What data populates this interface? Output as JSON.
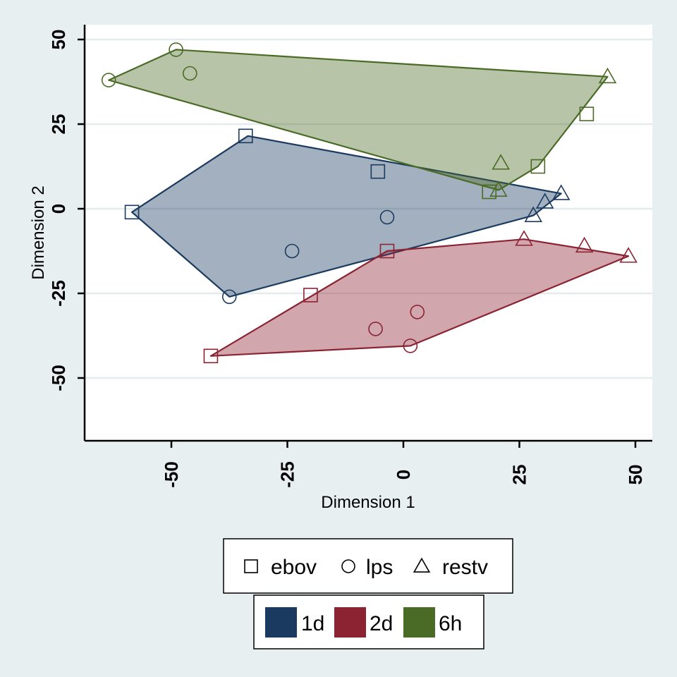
{
  "chart_data": {
    "type": "scatter",
    "title": "",
    "xlabel": "Dimension 1",
    "ylabel": "Dimension 2",
    "xlim": [
      -70,
      54
    ],
    "ylim": [
      -68,
      55
    ],
    "xticks": [
      -50,
      -25,
      0,
      25,
      50
    ],
    "yticks": [
      -50,
      -25,
      0,
      25,
      50
    ],
    "grid": true,
    "legend_placement": "bottom",
    "marker_legend": [
      {
        "name": "ebov",
        "marker": "square"
      },
      {
        "name": "lps",
        "marker": "circle"
      },
      {
        "name": "restv",
        "marker": "triangle"
      }
    ],
    "series": [
      {
        "name": "1d",
        "color": "#1a3a5f",
        "hull": [
          [
            -58.5,
            -1
          ],
          [
            -33.5,
            21.5
          ],
          [
            34,
            4.5
          ],
          [
            28,
            -2
          ],
          [
            -37.5,
            -26
          ]
        ],
        "points": [
          {
            "marker": "square",
            "x": -58.5,
            "y": -1
          },
          {
            "marker": "square",
            "x": -34,
            "y": 21.5
          },
          {
            "marker": "square",
            "x": -5.5,
            "y": 11
          },
          {
            "marker": "circle",
            "x": -3.5,
            "y": -2.5
          },
          {
            "marker": "circle",
            "x": -24,
            "y": -12.5
          },
          {
            "marker": "circle",
            "x": -37.5,
            "y": -26
          },
          {
            "marker": "triangle",
            "x": 34,
            "y": 4.5
          },
          {
            "marker": "triangle",
            "x": 30.5,
            "y": 2
          },
          {
            "marker": "triangle",
            "x": 28,
            "y": -2
          }
        ]
      },
      {
        "name": "2d",
        "color": "#8b2332",
        "hull": [
          [
            -41.5,
            -43.5
          ],
          [
            -3.5,
            -12.5
          ],
          [
            26,
            -9
          ],
          [
            48.5,
            -14
          ],
          [
            1.5,
            -40.5
          ]
        ],
        "points": [
          {
            "marker": "square",
            "x": -41.5,
            "y": -43.5
          },
          {
            "marker": "square",
            "x": -20,
            "y": -25.5
          },
          {
            "marker": "square",
            "x": -3.5,
            "y": -12.5
          },
          {
            "marker": "circle",
            "x": 1.5,
            "y": -40.5
          },
          {
            "marker": "circle",
            "x": -6,
            "y": -35.5
          },
          {
            "marker": "circle",
            "x": 3,
            "y": -30.5
          },
          {
            "marker": "triangle",
            "x": 26,
            "y": -9
          },
          {
            "marker": "triangle",
            "x": 39,
            "y": -11
          },
          {
            "marker": "triangle",
            "x": 48.5,
            "y": -14
          }
        ]
      },
      {
        "name": "6h",
        "color": "#4a6b25",
        "hull": [
          [
            -63.5,
            38
          ],
          [
            -49,
            47
          ],
          [
            44,
            39
          ],
          [
            29,
            12.5
          ],
          [
            20.5,
            5.5
          ]
        ],
        "points": [
          {
            "marker": "square",
            "x": 39.5,
            "y": 28
          },
          {
            "marker": "square",
            "x": 29,
            "y": 12.5
          },
          {
            "marker": "square",
            "x": 18.5,
            "y": 5
          },
          {
            "marker": "circle",
            "x": -63.5,
            "y": 38
          },
          {
            "marker": "circle",
            "x": -49,
            "y": 47
          },
          {
            "marker": "circle",
            "x": -46,
            "y": 40
          },
          {
            "marker": "triangle",
            "x": 44,
            "y": 39
          },
          {
            "marker": "triangle",
            "x": 21,
            "y": 13.5
          },
          {
            "marker": "triangle",
            "x": 20.5,
            "y": 5.5
          }
        ]
      }
    ]
  }
}
